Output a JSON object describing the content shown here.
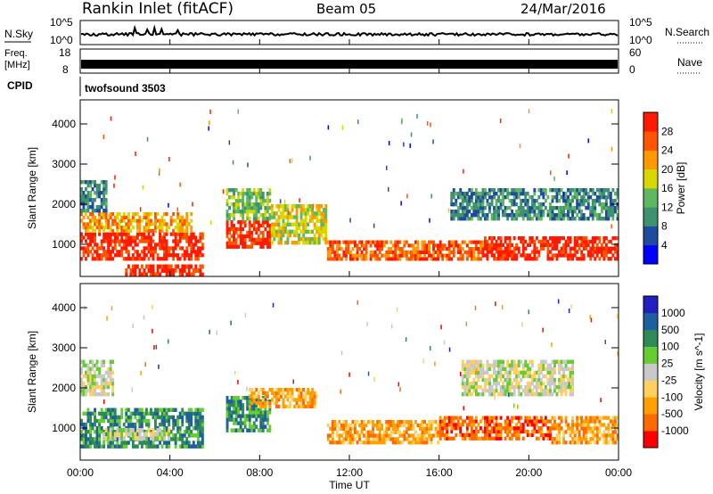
{
  "header": {
    "station": "Rankin Inlet (fitACF)",
    "beam": "Beam 05",
    "date": "24/Mar/2016"
  },
  "top_panels": {
    "nsky_label": "N.Sky",
    "nsky_ticks": [
      "10^5",
      "10^0"
    ],
    "nsearch_label": "N.Search",
    "nsearch_ticks": [
      "10^5",
      "10^0"
    ],
    "freq_label": "Freq.",
    "freq_unit": "[MHz]",
    "freq_ticks": [
      "18",
      "8"
    ],
    "nave_label": "Nave",
    "nave_ticks": [
      "60",
      "0"
    ],
    "cpid_label": "CPID",
    "cpid_value": "twofsound 3503"
  },
  "colors": {
    "power": [
      "#0000ff",
      "#1f4aa0",
      "#3f9270",
      "#5fb85f",
      "#d8d800",
      "#ff9900",
      "#ff5500",
      "#ff1a00"
    ],
    "velocity": [
      "#ff0000",
      "#ff6a00",
      "#ffa000",
      "#ffd060",
      "#c8c8c8",
      "#66cc33",
      "#2e8b57",
      "#1f5fa0",
      "#2020c0"
    ]
  },
  "chart_data": [
    {
      "type": "heatmap",
      "panel": "power",
      "ylabel": "Slant Range [km]",
      "yticks": [
        "4000",
        "3000",
        "2000",
        "1000"
      ],
      "ylim": [
        200,
        4600
      ],
      "xlim": [
        0,
        24
      ],
      "colorbar_label": "Power [dB]",
      "colorbar_ticks": [
        "28",
        "24",
        "20",
        "16",
        "12",
        "8",
        "4"
      ],
      "bands": [
        {
          "t0": 0.0,
          "t1": 5.5,
          "r0": 600,
          "r1": 1300,
          "level": 7
        },
        {
          "t0": 0.0,
          "t1": 5.0,
          "r0": 1300,
          "r1": 1800,
          "level": 5
        },
        {
          "t0": 0.0,
          "t1": 1.2,
          "r0": 1800,
          "r1": 2600,
          "level": 2
        },
        {
          "t0": 2.0,
          "t1": 5.5,
          "r0": 200,
          "r1": 500,
          "level": 7
        },
        {
          "t0": 6.5,
          "t1": 8.5,
          "r0": 900,
          "r1": 1600,
          "level": 7
        },
        {
          "t0": 6.5,
          "t1": 8.5,
          "r0": 1600,
          "r1": 2400,
          "level": 3
        },
        {
          "t0": 8.5,
          "t1": 11.0,
          "r0": 1000,
          "r1": 2000,
          "level": 4
        },
        {
          "t0": 11.0,
          "t1": 18.0,
          "r0": 600,
          "r1": 1100,
          "level": 6
        },
        {
          "t0": 18.0,
          "t1": 24.0,
          "r0": 600,
          "r1": 1200,
          "level": 7
        },
        {
          "t0": 16.5,
          "t1": 24.0,
          "r0": 1600,
          "r1": 2400,
          "level": 2
        }
      ]
    },
    {
      "type": "heatmap",
      "panel": "velocity",
      "ylabel": "Slant Range [km]",
      "yticks": [
        "4000",
        "3000",
        "2000",
        "1000"
      ],
      "ylim": [
        200,
        4600
      ],
      "xlim": [
        0,
        24
      ],
      "xlabel": "Time UT",
      "xticks": [
        "00:00",
        "04:00",
        "08:00",
        "12:00",
        "16:00",
        "20:00",
        "00:00"
      ],
      "colorbar_label": "Velocity [m s^-1]",
      "colorbar_ticks": [
        "1000",
        "500",
        "100",
        "25",
        "-25",
        "-100",
        "-500",
        "-1000"
      ],
      "bands": [
        {
          "t0": 0.0,
          "t1": 5.5,
          "r0": 500,
          "r1": 1500,
          "level": 6
        },
        {
          "t0": 0.0,
          "t1": 1.5,
          "r0": 1800,
          "r1": 2700,
          "level": 4
        },
        {
          "t0": 1.0,
          "t1": 4.0,
          "r0": 700,
          "r1": 1000,
          "level": 4
        },
        {
          "t0": 6.5,
          "t1": 8.5,
          "r0": 900,
          "r1": 1800,
          "level": 6
        },
        {
          "t0": 7.5,
          "t1": 10.5,
          "r0": 1500,
          "r1": 2000,
          "level": 2
        },
        {
          "t0": 11.0,
          "t1": 16.0,
          "r0": 600,
          "r1": 1200,
          "level": 2
        },
        {
          "t0": 16.0,
          "t1": 21.0,
          "r0": 700,
          "r1": 1300,
          "level": 1
        },
        {
          "t0": 17.0,
          "t1": 22.0,
          "r0": 1800,
          "r1": 2700,
          "level": 4
        },
        {
          "t0": 21.0,
          "t1": 24.0,
          "r0": 600,
          "r1": 1300,
          "level": 2
        }
      ]
    }
  ]
}
